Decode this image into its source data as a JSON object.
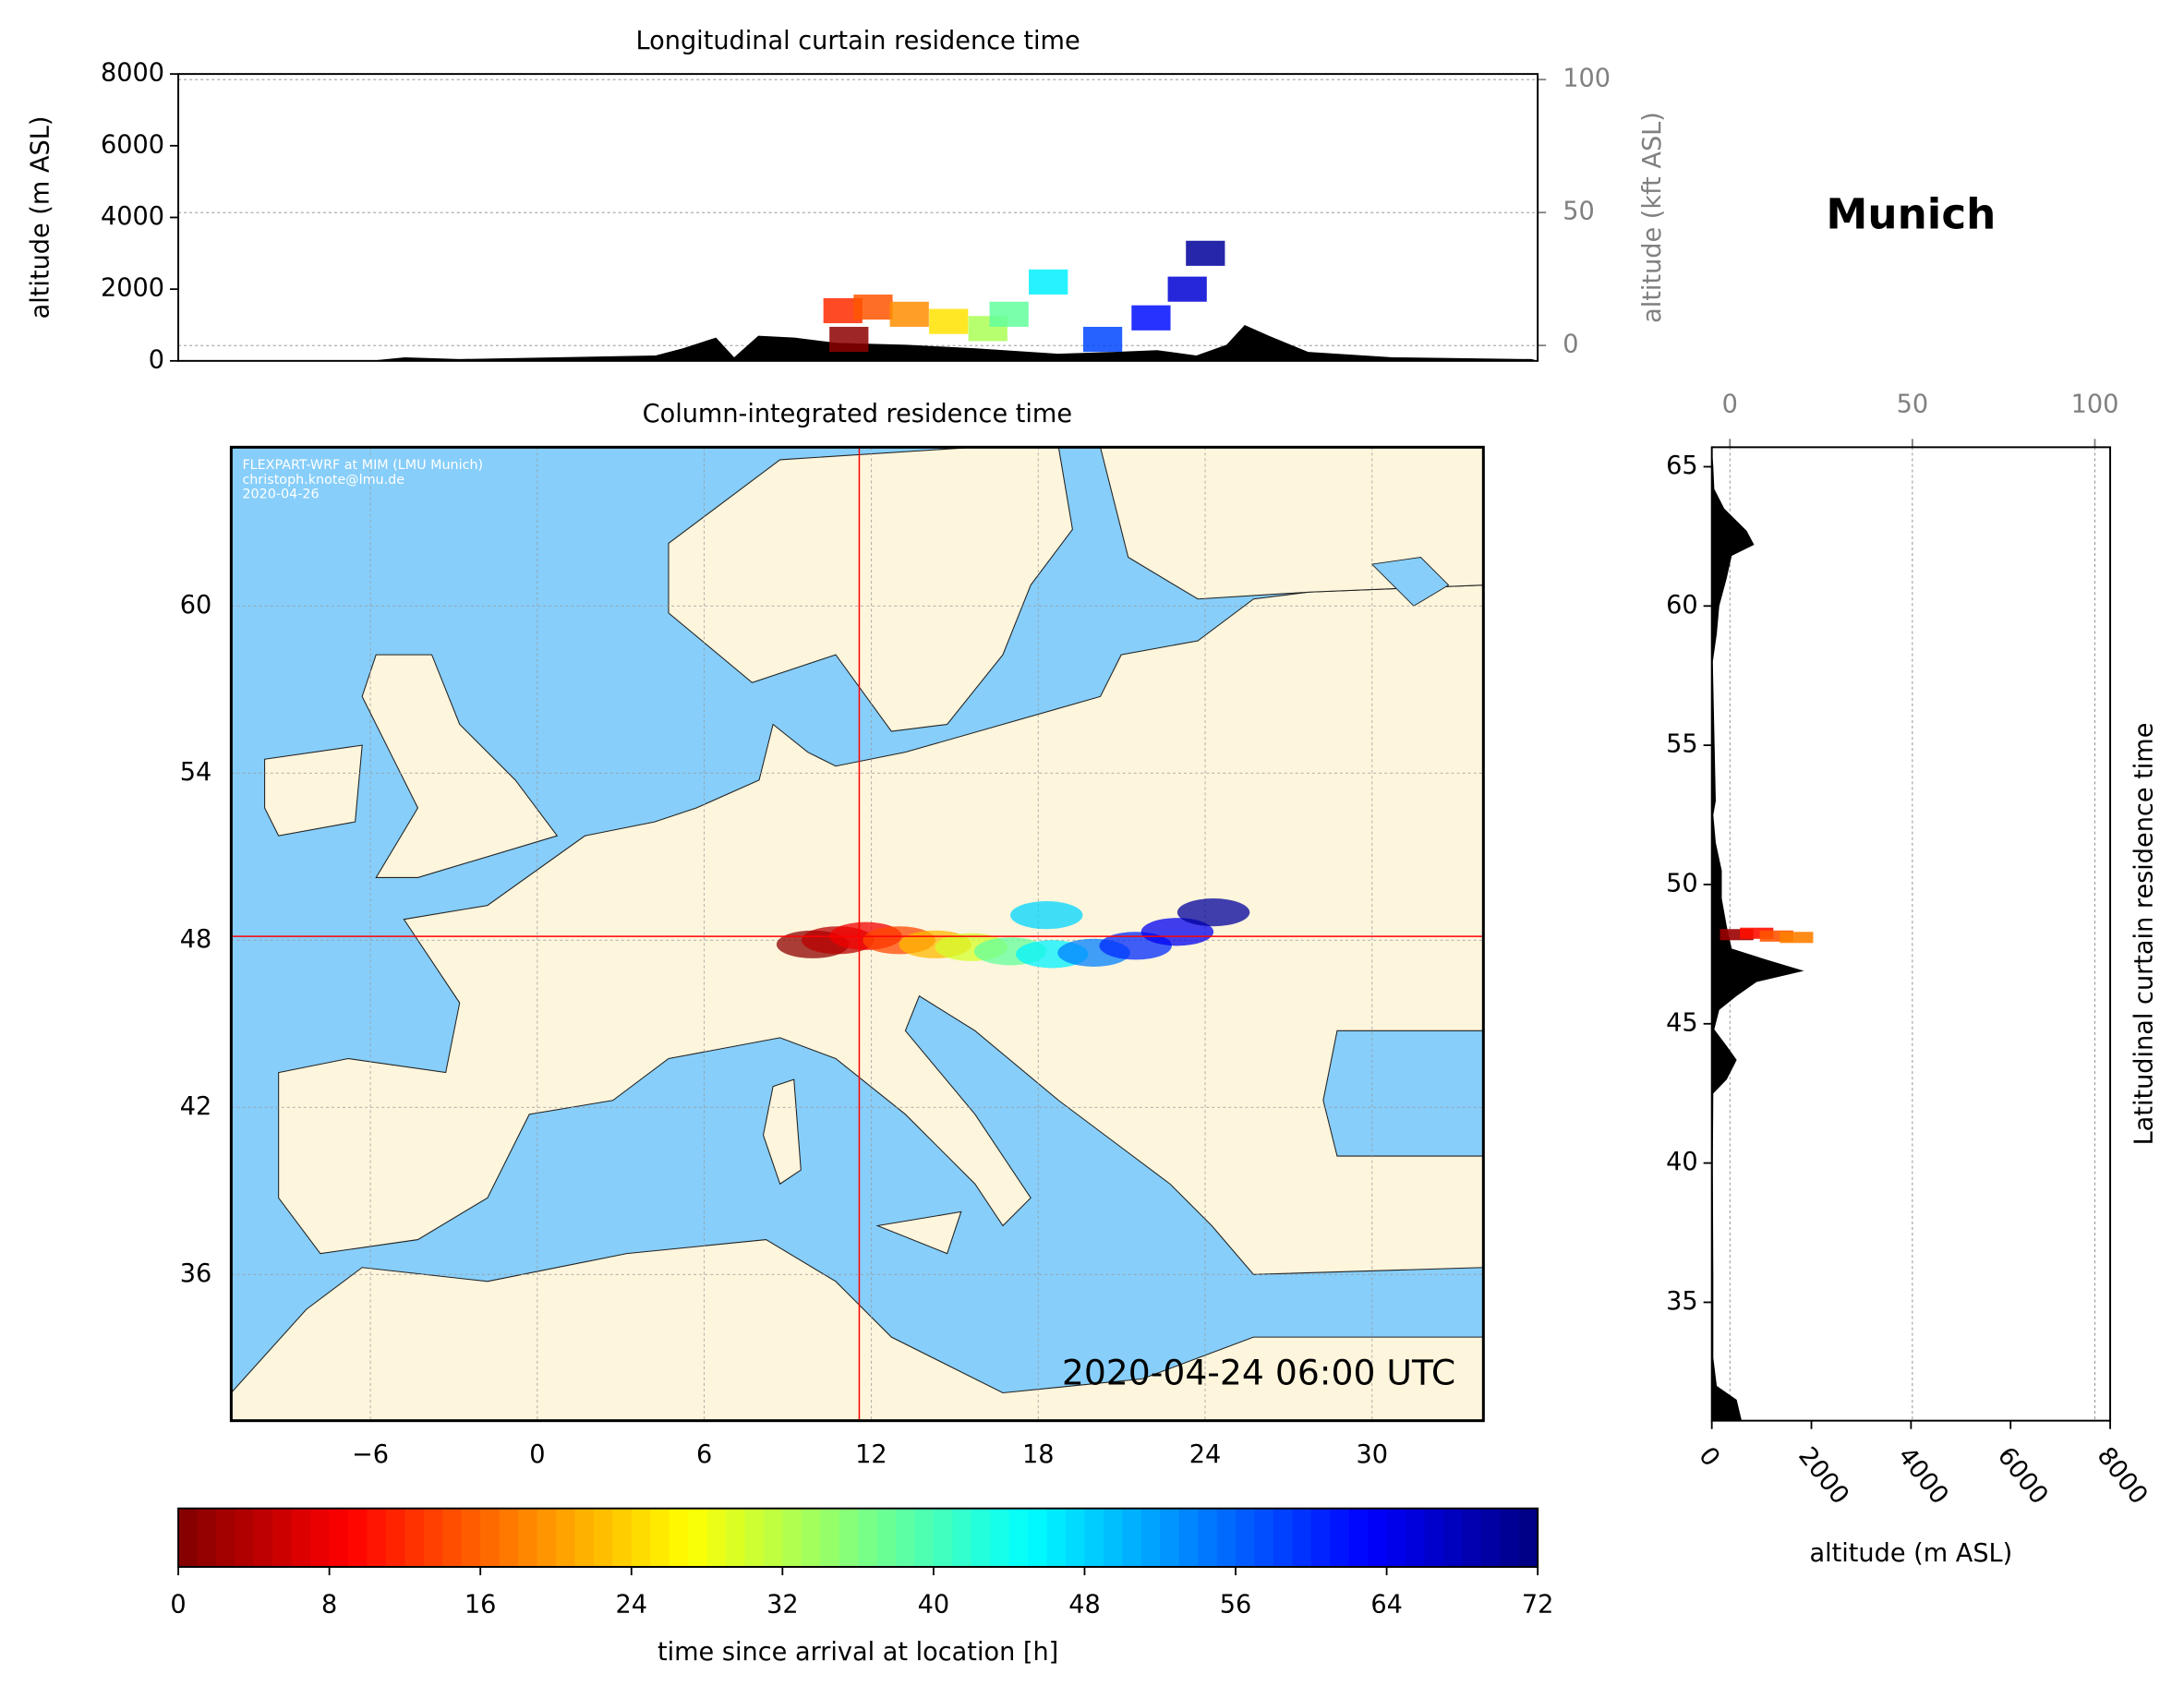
{
  "title": "Munich",
  "chart_data": [
    {
      "type": "curtain-lon",
      "title": "Longitudinal curtain residence time",
      "ylabel": "altitude (m ASL)",
      "y2label": "altitude (kft ASL)",
      "xlim": [
        -11,
        34
      ],
      "ylim": [
        0,
        8000
      ],
      "yticks": [
        0,
        2000,
        4000,
        6000,
        8000
      ],
      "y2lim": [
        -5.8,
        102.1
      ],
      "y2ticks": [
        0,
        50,
        100
      ],
      "grid": true,
      "terrain": {
        "color": "#000000",
        "x": [
          -11,
          -4.7,
          -3.5,
          -1.7,
          1.5,
          4.8,
          5.7,
          6.8,
          7.4,
          8.2,
          9.4,
          10.8,
          13.1,
          15.4,
          18.1,
          20,
          21.4,
          22.7,
          23.7,
          24.3,
          25.1,
          26.4,
          29.2,
          33.8,
          34
        ],
        "values": [
          0,
          0,
          100,
          50,
          100,
          150,
          350,
          650,
          100,
          700,
          650,
          500,
          450,
          350,
          200,
          250,
          300,
          150,
          450,
          1000,
          700,
          250,
          100,
          50,
          0
        ]
      },
      "plume": {
        "x": [
          11.2,
          11,
          12,
          13.2,
          14.5,
          15.8,
          16.5,
          17.8,
          19.6,
          21.2,
          22.4,
          23.0
        ],
        "values": [
          600,
          1400,
          1500,
          1300,
          1100,
          900,
          1300,
          2200,
          600,
          1200,
          2000,
          3000
        ],
        "hours": [
          1,
          12,
          15,
          19,
          25,
          33,
          38,
          46,
          58,
          62,
          66,
          70
        ]
      }
    },
    {
      "type": "map",
      "title": "Column-integrated residence time",
      "xlim": [
        -11,
        34
      ],
      "ylim": [
        30.75,
        65.7
      ],
      "xticks": [
        {
          "value": -6,
          "label": "−6"
        },
        0,
        6,
        12,
        18,
        24,
        30
      ],
      "yticks": [
        36,
        42,
        48,
        54,
        60
      ],
      "grid": true,
      "location": {
        "x": 11.57,
        "y": 48.14,
        "color": "#ff0000"
      },
      "plume": {
        "x": [
          9.9,
          10.8,
          11.8,
          13,
          14.3,
          15.6,
          17,
          18.5,
          20,
          21.5,
          23,
          24.3,
          18.3
        ],
        "y": [
          47.85,
          48.0,
          48.15,
          48.0,
          47.85,
          47.75,
          47.6,
          47.5,
          47.55,
          47.8,
          48.3,
          49.0,
          48.9
        ],
        "hours": [
          1,
          4,
          8,
          14,
          22,
          30,
          38,
          46,
          54,
          60,
          64,
          70,
          48
        ]
      },
      "annotation": "2020-04-24 06:00 UTC",
      "credits": [
        "FLEXPART-WRF at MIM (LMU Munich)",
        "christoph.knote@lmu.de",
        "2020-04-26"
      ]
    },
    {
      "type": "colorbar",
      "xlabel": "time since arrival at location [h]",
      "xlim": [
        0,
        72
      ],
      "xticks": [
        0,
        8,
        16,
        24,
        32,
        40,
        48,
        56,
        64,
        72
      ],
      "colormap": "jet_r"
    },
    {
      "type": "curtain-lat",
      "title": "Latitudinal curtain residence time",
      "xlabel": "altitude (m ASL)",
      "xlim": [
        0,
        8000
      ],
      "xticks": [
        0,
        2000,
        4000,
        6000,
        8000
      ],
      "x2lim": [
        -4.96,
        104.2
      ],
      "x2ticks": [
        0,
        50,
        100
      ],
      "ylim": [
        30.75,
        65.7
      ],
      "yticks": [
        35,
        40,
        45,
        50,
        55,
        60,
        65
      ],
      "grid": true,
      "terrain": {
        "color": "#000000",
        "y": [
          30.75,
          31.5,
          32,
          33,
          36,
          40,
          42.5,
          43,
          43.7,
          44.2,
          44.8,
          45.5,
          46,
          46.5,
          46.9,
          47.3,
          47.7,
          48.5,
          49.5,
          50.5,
          51.5,
          52.5,
          53,
          58,
          59,
          60,
          61,
          61.8,
          62.2,
          62.7,
          63.5,
          64.2,
          65,
          65.7
        ],
        "values": [
          600,
          500,
          100,
          30,
          30,
          20,
          30,
          300,
          500,
          300,
          50,
          150,
          500,
          900,
          1850,
          1100,
          400,
          300,
          200,
          200,
          80,
          30,
          80,
          20,
          100,
          150,
          300,
          400,
          850,
          700,
          250,
          50,
          30,
          0
        ]
      },
      "plume": {
        "y": [
          48.2,
          48.25,
          48.15,
          48.1
        ],
        "values": [
          500,
          900,
          1300,
          1700
        ],
        "hours": [
          2,
          10,
          15,
          18
        ]
      }
    }
  ]
}
